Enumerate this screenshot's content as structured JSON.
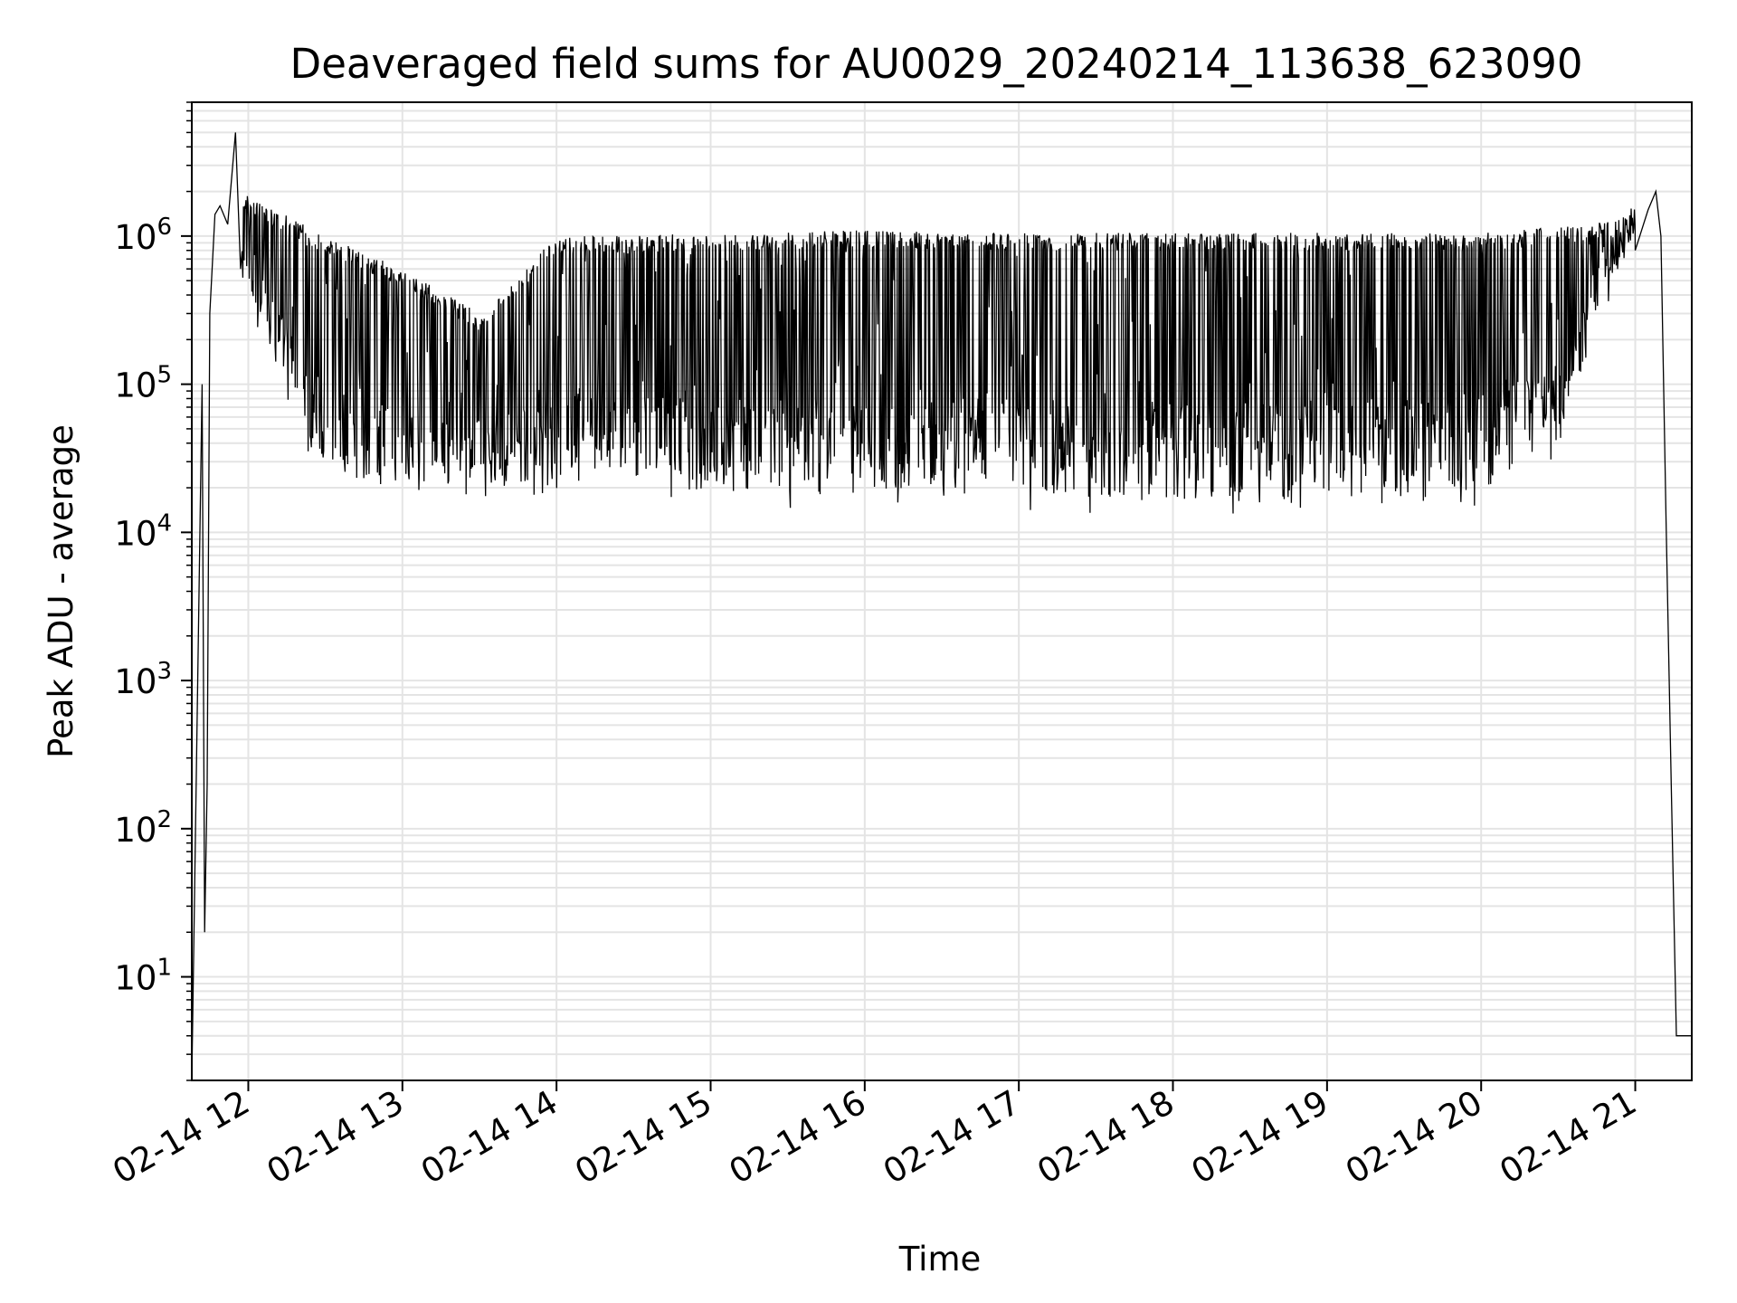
{
  "chart_data": {
    "type": "line",
    "title": "Deaveraged field sums for AU0029_20240214_113638_623090",
    "xlabel": "Time",
    "ylabel": "Peak ADU - average",
    "yscale": "log",
    "ylim": [
      2,
      8000000
    ],
    "xlim": [
      "2024-02-14 11:38",
      "2024-02-14 21:22"
    ],
    "grid": true,
    "x_ticks": [
      "02-14 12",
      "02-14 13",
      "02-14 14",
      "02-14 15",
      "02-14 16",
      "02-14 17",
      "02-14 18",
      "02-14 19",
      "02-14 20",
      "02-14 21"
    ],
    "y_ticks": [
      {
        "base": "10",
        "exp": "1"
      },
      {
        "base": "10",
        "exp": "2"
      },
      {
        "base": "10",
        "exp": "3"
      },
      {
        "base": "10",
        "exp": "4"
      },
      {
        "base": "10",
        "exp": "5"
      },
      {
        "base": "10",
        "exp": "6"
      }
    ],
    "series": [
      {
        "color": "#000000",
        "x": [
          "2024-02-14 11:38",
          "2024-02-14 11:42",
          "2024-02-14 11:43",
          "2024-02-14 11:44",
          "2024-02-14 11:45",
          "2024-02-14 11:47",
          "2024-02-14 11:49",
          "2024-02-14 11:52",
          "2024-02-14 11:55",
          "2024-02-14 11:57",
          "2024-02-14 11:58",
          "2024-02-14 12:00",
          "2024-02-14 12:05",
          "2024-02-14 12:10",
          "2024-02-14 12:15",
          "2024-02-14 12:20",
          "2024-02-14 12:25",
          "2024-02-14 12:30",
          "2024-02-14 12:40",
          "2024-02-14 12:50",
          "2024-02-14 13:00",
          "2024-02-14 13:15",
          "2024-02-14 13:30",
          "2024-02-14 13:45",
          "2024-02-14 14:00",
          "2024-02-14 14:30",
          "2024-02-14 15:00",
          "2024-02-14 15:30",
          "2024-02-14 16:00",
          "2024-02-14 16:30",
          "2024-02-14 17:00",
          "2024-02-14 17:30",
          "2024-02-14 18:00",
          "2024-02-14 18:30",
          "2024-02-14 19:00",
          "2024-02-14 19:30",
          "2024-02-14 20:00",
          "2024-02-14 20:20",
          "2024-02-14 20:40",
          "2024-02-14 20:50",
          "2024-02-14 21:00",
          "2024-02-14 21:05",
          "2024-02-14 21:08",
          "2024-02-14 21:10",
          "2024-02-14 21:12",
          "2024-02-14 21:14",
          "2024-02-14 21:16",
          "2024-02-14 21:22"
        ],
        "y": [
          2,
          100000,
          20,
          200,
          300000,
          1400000,
          1600000,
          1200000,
          5000000,
          600000,
          400000,
          300000,
          300000,
          200000,
          80000,
          40000,
          30000,
          25000,
          22000,
          20000,
          19000,
          20000,
          22000,
          21000,
          20000,
          20000,
          20000,
          21000,
          22000,
          22000,
          21000,
          20000,
          20000,
          19000,
          19000,
          20000,
          21000,
          30000,
          100000,
          400000,
          800000,
          1500000,
          2000000,
          1000000,
          12000,
          200,
          4,
          4
        ]
      }
    ],
    "spikes": {
      "description_free": true,
      "upper_envelope": [
        [
          11.8,
          1500000
        ],
        [
          12.0,
          1900000
        ],
        [
          12.5,
          1000000
        ],
        [
          13.0,
          600000
        ],
        [
          13.5,
          300000
        ],
        [
          14.0,
          1000000
        ],
        [
          14.5,
          1000000
        ],
        [
          15.0,
          1050000
        ],
        [
          16.0,
          1100000
        ],
        [
          17.0,
          1050000
        ],
        [
          18.0,
          1050000
        ],
        [
          19.0,
          1050000
        ],
        [
          20.0,
          1050000
        ],
        [
          20.5,
          1150000
        ],
        [
          20.9,
          1300000
        ],
        [
          21.05,
          2200000
        ]
      ],
      "lower_envelope": [
        [
          11.95,
          400000
        ],
        [
          12.2,
          100000
        ],
        [
          12.4,
          30000
        ],
        [
          12.6,
          20000
        ],
        [
          13.0,
          17000
        ],
        [
          14.0,
          17000
        ],
        [
          15.0,
          15000
        ],
        [
          16.0,
          14000
        ],
        [
          17.0,
          14000
        ],
        [
          18.0,
          13000
        ],
        [
          19.0,
          14000
        ],
        [
          20.0,
          15000
        ],
        [
          20.5,
          30000
        ],
        [
          20.8,
          300000
        ],
        [
          21.0,
          800000
        ]
      ]
    }
  }
}
